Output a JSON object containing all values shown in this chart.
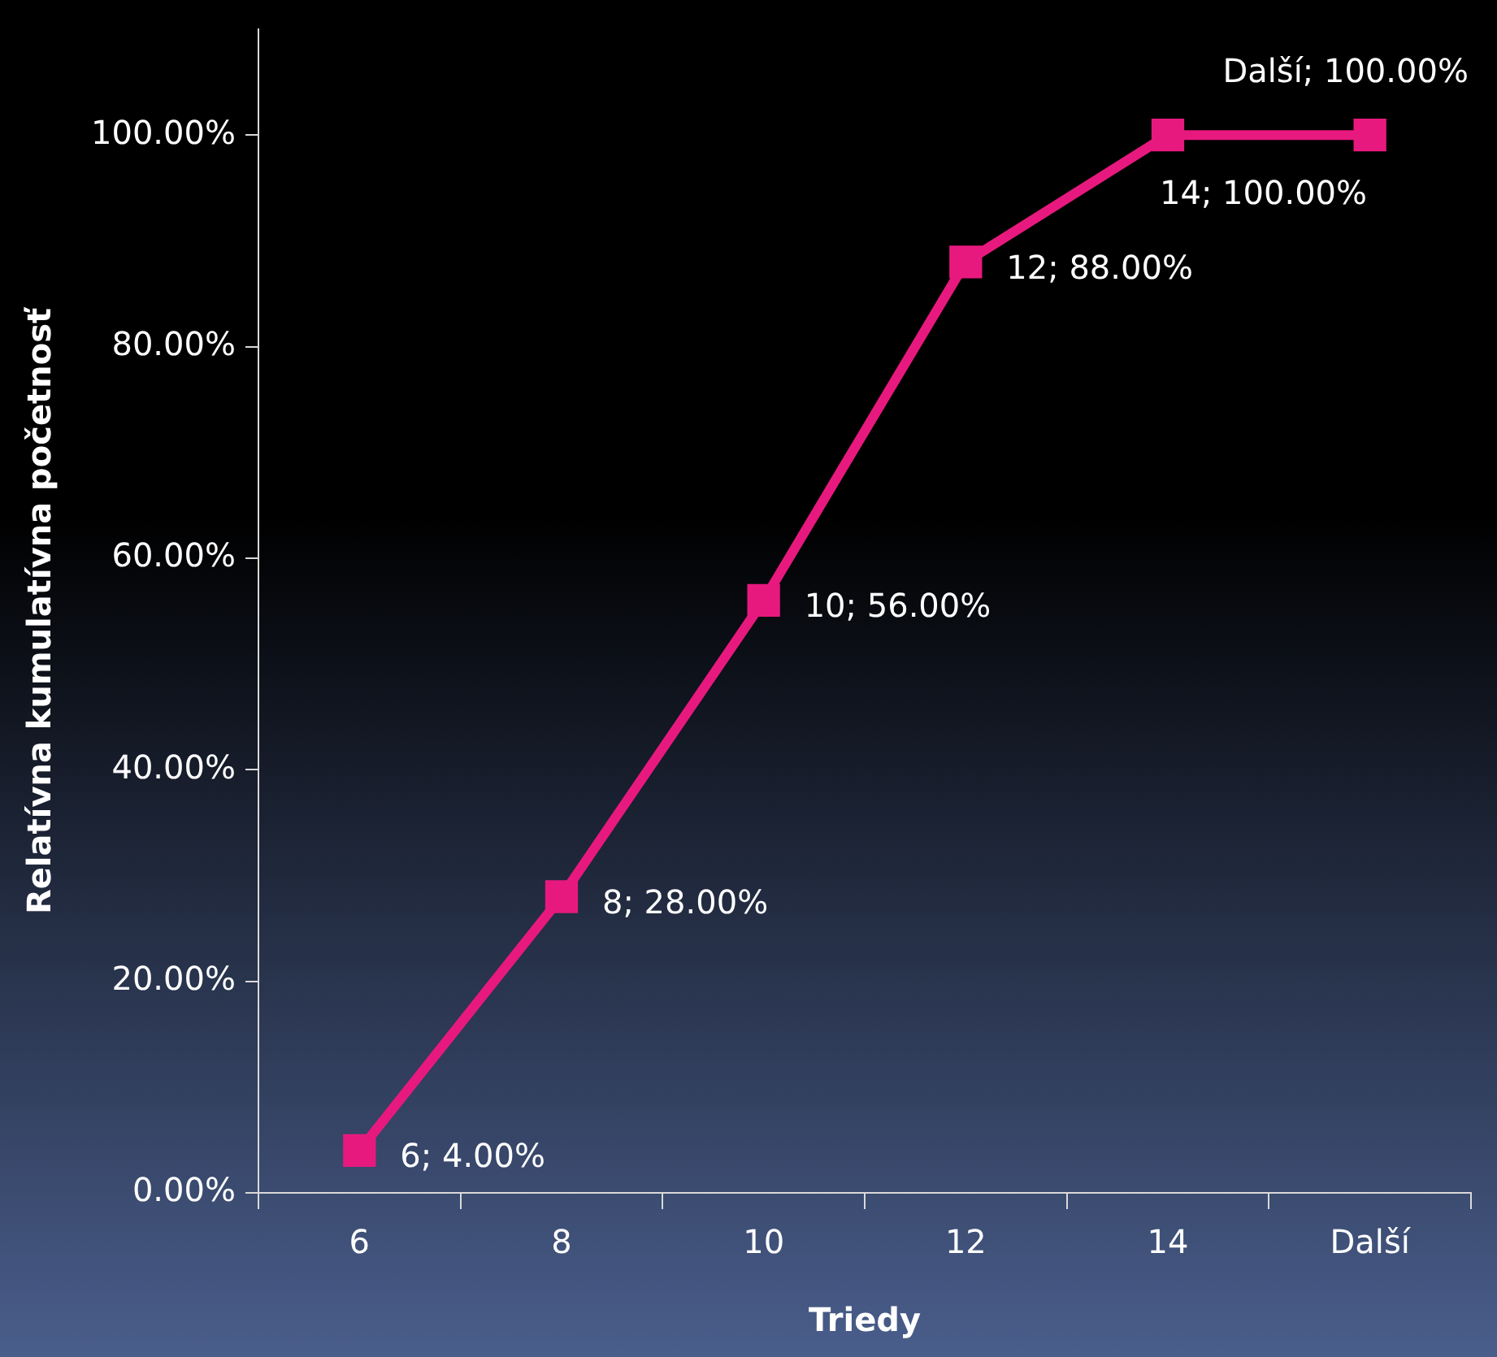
{
  "chart_data": {
    "type": "line",
    "xlabel": "Triedy",
    "ylabel": "Relatívna kumulatívna početnosť",
    "categories": [
      "6",
      "8",
      "10",
      "12",
      "14",
      "Další"
    ],
    "series": [
      {
        "color": "#e8197e",
        "values": [
          4,
          28,
          56,
          88,
          100,
          100
        ],
        "value_labels": [
          "6; 4.00%",
          "8; 28.00%",
          "10; 56.00%",
          "12; 88.00%",
          "14; 100.00%",
          "Další; 100.00%"
        ]
      }
    ],
    "ylim": [
      0,
      110
    ],
    "yticks": [
      {
        "value": 0,
        "label": "0.00%"
      },
      {
        "value": 20,
        "label": "20.00%"
      },
      {
        "value": 40,
        "label": "40.00%"
      },
      {
        "value": 60,
        "label": "60.00%"
      },
      {
        "value": 80,
        "label": "80.00%"
      },
      {
        "value": 100,
        "label": "100.00%"
      }
    ],
    "grid": false,
    "legend": false,
    "marker": "square",
    "line_style": "solid"
  }
}
